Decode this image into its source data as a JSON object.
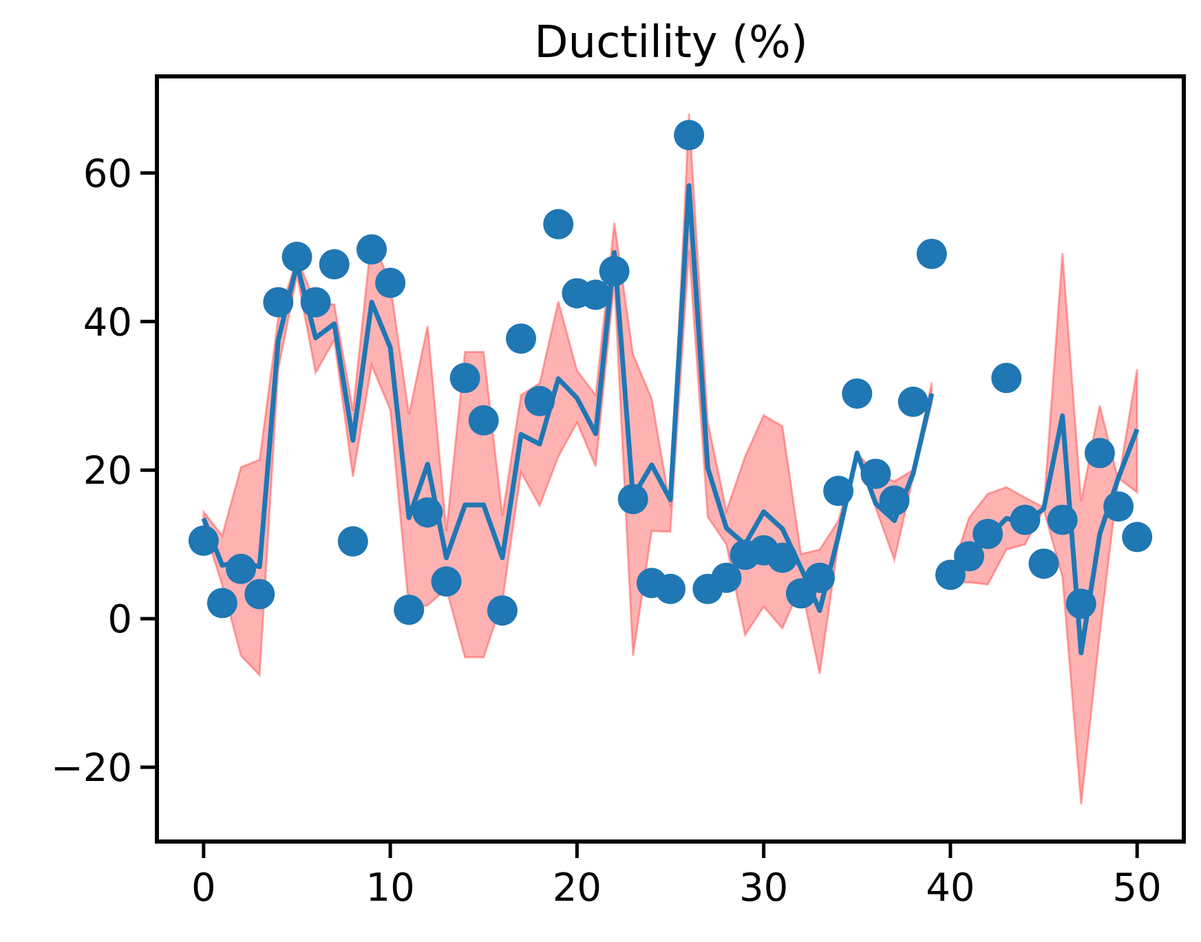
{
  "chart_data": {
    "type": "line",
    "title": "Ductility (%)",
    "xlabel": "",
    "ylabel": "",
    "xlim": [
      -2.5,
      52.5
    ],
    "ylim": [
      -30,
      73
    ],
    "xticks": [
      0,
      10,
      20,
      30,
      40,
      50
    ],
    "yticks": [
      -20,
      0,
      20,
      40,
      60
    ],
    "xtick_labels": [
      "0",
      "10",
      "20",
      "30",
      "40",
      "50"
    ],
    "ytick_labels": [
      "−20",
      "0",
      "20",
      "40",
      "60"
    ],
    "grid": false,
    "colors": {
      "points": "#1f77b4",
      "line": "#1f77b4",
      "band_fill": "#ff0000",
      "band_edge": "#ff0000"
    },
    "series": [
      {
        "type": "scatter",
        "x": [
          0,
          1,
          2,
          3,
          4,
          5,
          6,
          7,
          8,
          9,
          10,
          11,
          12,
          13,
          14,
          15,
          16,
          17,
          18,
          19,
          20,
          21,
          22,
          23,
          24,
          25,
          26,
          27,
          28,
          29,
          30,
          31,
          32,
          33,
          34,
          35,
          36,
          37,
          38,
          39,
          40,
          41,
          42,
          43,
          44,
          45,
          46,
          47,
          48,
          49,
          50
        ],
        "y": [
          10.5,
          2.1,
          6.7,
          3.3,
          42.6,
          48.7,
          42.6,
          47.7,
          10.4,
          49.7,
          45.2,
          1.2,
          14.3,
          5.0,
          32.4,
          26.7,
          1.1,
          37.7,
          29.3,
          53.1,
          43.8,
          43.6,
          46.8,
          16.1,
          4.8,
          4.0,
          65.1,
          4.0,
          5.5,
          8.6,
          9.2,
          8.2,
          3.4,
          5.5,
          17.2,
          30.3,
          19.5,
          15.9,
          29.2,
          49.1,
          5.9,
          8.4,
          11.4,
          32.4,
          13.3,
          7.4,
          13.3,
          2.0,
          22.3,
          15.1,
          11.0
        ]
      },
      {
        "type": "line",
        "x": [
          0,
          1,
          2,
          3,
          4,
          5,
          6,
          7,
          8,
          9,
          10,
          11,
          12,
          13,
          14,
          15,
          16,
          17,
          18,
          19,
          20,
          21,
          22,
          23,
          24,
          25,
          26,
          27,
          28,
          29,
          30,
          31,
          32,
          33,
          34,
          35,
          36,
          37,
          38,
          39
        ],
        "y": [
          13.5,
          7.2,
          7.6,
          7.0,
          37.5,
          47.7,
          37.8,
          39.7,
          24.0,
          42.6,
          36.5,
          13.6,
          20.8,
          8.2,
          15.3,
          15.3,
          8.2,
          24.8,
          23.5,
          32.3,
          29.7,
          24.9,
          49.3,
          16.4,
          20.7,
          16.0,
          58.3,
          20.3,
          12.2,
          10.0,
          14.4,
          12.1,
          6.8,
          1.1,
          11.1,
          22.3,
          15.5,
          13.2,
          19.5,
          30.3
        ],
        "band_upper": [
          14.4,
          11.2,
          20.4,
          21.4,
          40.5,
          48.5,
          42.5,
          42.3,
          28.0,
          51.5,
          45.0,
          27.5,
          39.4,
          11.8,
          35.9,
          35.9,
          13.9,
          30.1,
          31.7,
          42.7,
          33.4,
          30.1,
          53.3,
          35.6,
          29.6,
          15.0,
          68.0,
          26.5,
          14.5,
          21.8,
          27.4,
          25.9,
          8.7,
          9.3,
          13.2,
          22.3,
          19.5,
          18.5,
          20.0,
          31.8
        ],
        "band_lower": [
          12.5,
          4.5,
          -5.0,
          -7.6,
          33.5,
          46.2,
          33.1,
          37.5,
          19.1,
          34.1,
          28.1,
          1.4,
          1.8,
          4.0,
          -5.2,
          -5.2,
          2.3,
          19.7,
          15.2,
          21.8,
          26.4,
          20.5,
          45.3,
          -5.0,
          11.8,
          11.7,
          49.6,
          13.7,
          10.0,
          -2.2,
          1.6,
          -1.3,
          4.4,
          -7.4,
          10.2,
          22.3,
          14.9,
          7.9,
          19.0,
          29.0
        ]
      },
      {
        "type": "line",
        "x": [
          40,
          41,
          42,
          43,
          44,
          45,
          46,
          47,
          48,
          49,
          50
        ],
        "y": [
          5.4,
          8.3,
          10.9,
          13.5,
          12.9,
          14.8,
          27.3,
          -4.6,
          11.4,
          19.0,
          25.5
        ],
        "band_upper": [
          5.9,
          13.6,
          16.8,
          17.7,
          16.3,
          15.0,
          49.2,
          15.8,
          28.7,
          18.6,
          33.6
        ],
        "band_lower": [
          4.8,
          4.9,
          4.6,
          9.3,
          10.0,
          14.7,
          5.6,
          -25.0,
          -2.1,
          18.9,
          17.0
        ]
      }
    ]
  }
}
